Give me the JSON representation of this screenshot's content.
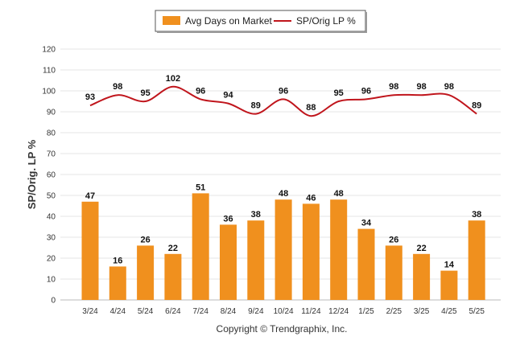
{
  "chart_data": {
    "type": "bar",
    "categories": [
      "3/24",
      "4/24",
      "5/24",
      "6/24",
      "7/24",
      "8/24",
      "9/24",
      "10/24",
      "11/24",
      "12/24",
      "1/25",
      "2/25",
      "3/25",
      "4/25",
      "5/25"
    ],
    "series": [
      {
        "name": "Avg Days on Market",
        "type": "bar",
        "values": [
          47,
          16,
          26,
          22,
          51,
          36,
          38,
          48,
          46,
          48,
          34,
          26,
          22,
          14,
          38
        ],
        "color": "#f0901e"
      },
      {
        "name": "SP/Orig LP %",
        "type": "line",
        "values": [
          93,
          98,
          95,
          102,
          96,
          94,
          89,
          96,
          88,
          95,
          96,
          98,
          98,
          98,
          89
        ],
        "color": "#c0151c"
      }
    ],
    "ylabel": "SP/Orig. LP %",
    "xlabel": "",
    "ylim": [
      0,
      120
    ],
    "yticks": [
      0,
      10,
      20,
      30,
      40,
      50,
      60,
      70,
      80,
      90,
      100,
      110,
      120
    ],
    "grid": true,
    "legend_position": "top-center"
  },
  "footer": {
    "copyright": "Copyright © Trendgraphix, Inc."
  }
}
